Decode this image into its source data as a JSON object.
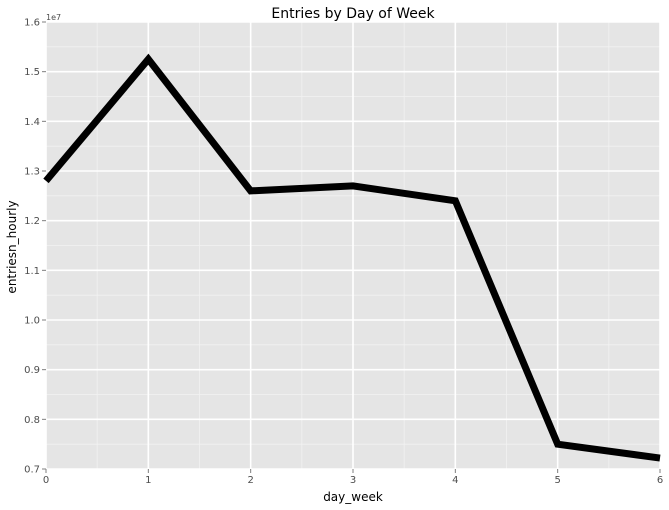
{
  "chart_data": {
    "type": "line",
    "title": "Entries by Day of Week",
    "xlabel": "day_week",
    "ylabel": "entriesn_hourly",
    "y_multiplier_label": "1e7",
    "x": [
      0,
      1,
      2,
      3,
      4,
      5,
      6
    ],
    "series": [
      {
        "values": [
          12.8,
          15.25,
          12.6,
          12.7,
          12.4,
          7.5,
          7.22
        ],
        "color": "#000000"
      }
    ],
    "xlim": [
      0,
      6
    ],
    "ylim": [
      0.7,
      1.6
    ],
    "y_scale_note": "values in units of 1e6 (axis shows x1e7)",
    "x_ticks": [
      "0",
      "1",
      "2",
      "3",
      "4",
      "5",
      "6"
    ],
    "y_ticks": [
      "0.7",
      "0.8",
      "0.9",
      "1.0",
      "1.1",
      "1.2",
      "1.3",
      "1.4",
      "1.5",
      "1.6"
    ],
    "grid": true,
    "legend": "none",
    "panel_color": "#e5e5e5",
    "grid_color": "#ffffff"
  }
}
